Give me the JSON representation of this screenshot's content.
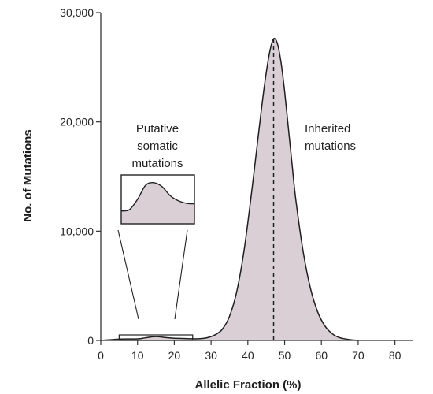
{
  "chart_data": {
    "type": "area",
    "title": "",
    "xlabel": "Allelic Fraction (%)",
    "ylabel": "No. of Mutations",
    "xlim": [
      0,
      85
    ],
    "ylim": [
      0,
      30000
    ],
    "x_ticks": [
      "0",
      "10",
      "20",
      "30",
      "40",
      "50",
      "60",
      "70",
      "80"
    ],
    "y_ticks": [
      "0",
      "10,000",
      "20,000",
      "30,000"
    ],
    "grid": false,
    "x": [
      0,
      5,
      10,
      12,
      14,
      15,
      16,
      18,
      20,
      22,
      25,
      27,
      29,
      31,
      33,
      35,
      37,
      39,
      41,
      43,
      44,
      45,
      46,
      47,
      48,
      49,
      50,
      51,
      52,
      53,
      55,
      57,
      59,
      61,
      63,
      65,
      68,
      70
    ],
    "series": [
      {
        "values": [
          0,
          120,
          140,
          230,
          330,
          350,
          330,
          250,
          200,
          180,
          150,
          160,
          250,
          500,
          1000,
          2200,
          4500,
          8300,
          13500,
          19200,
          22000,
          24500,
          26500,
          27600,
          27200,
          25500,
          22800,
          19500,
          16200,
          13000,
          8200,
          4800,
          2600,
          1300,
          600,
          250,
          60,
          0
        ],
        "color": "#d9cfd4"
      }
    ],
    "reference_line": {
      "x": 47,
      "style": "dashed"
    },
    "annotations": {
      "somatic": [
        "Putative",
        "somatic",
        "mutations"
      ],
      "inherited": [
        "Inherited",
        "mutations"
      ]
    },
    "inset": {
      "x_range": [
        5,
        25
      ],
      "y": [
        1000,
        1100,
        1900,
        3000,
        3200,
        2900,
        2200,
        1800,
        1600,
        1550
      ]
    }
  }
}
